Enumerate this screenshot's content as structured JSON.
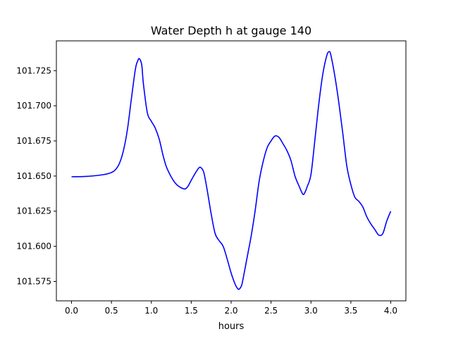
{
  "chart_data": {
    "type": "line",
    "title": "Water Depth h at gauge 140",
    "xlabel": "hours",
    "ylabel": "",
    "xlim": [
      -0.19,
      4.19
    ],
    "ylim": [
      101.5612,
      101.7462
    ],
    "xticks": [
      {
        "value": 0.0,
        "label": "0.0"
      },
      {
        "value": 0.5,
        "label": "0.5"
      },
      {
        "value": 1.0,
        "label": "1.0"
      },
      {
        "value": 1.5,
        "label": "1.5"
      },
      {
        "value": 2.0,
        "label": "2.0"
      },
      {
        "value": 2.5,
        "label": "2.5"
      },
      {
        "value": 3.0,
        "label": "3.0"
      },
      {
        "value": 3.5,
        "label": "3.5"
      },
      {
        "value": 4.0,
        "label": "4.0"
      }
    ],
    "yticks": [
      {
        "value": 101.575,
        "label": "101.575"
      },
      {
        "value": 101.6,
        "label": "101.600"
      },
      {
        "value": 101.625,
        "label": "101.625"
      },
      {
        "value": 101.65,
        "label": "101.650"
      },
      {
        "value": 101.675,
        "label": "101.675"
      },
      {
        "value": 101.7,
        "label": "101.700"
      },
      {
        "value": 101.725,
        "label": "101.725"
      }
    ],
    "grid": false,
    "legend": "none",
    "series": [
      {
        "color": "#0000ff",
        "x": [
          0.0,
          0.2,
          0.4,
          0.5,
          0.55,
          0.6,
          0.65,
          0.7,
          0.75,
          0.8,
          0.83,
          0.85,
          0.88,
          0.9,
          0.95,
          1.0,
          1.05,
          1.1,
          1.15,
          1.2,
          1.3,
          1.4,
          1.45,
          1.5,
          1.55,
          1.6,
          1.63,
          1.66,
          1.7,
          1.75,
          1.8,
          1.85,
          1.9,
          1.95,
          2.0,
          2.05,
          2.08,
          2.1,
          2.13,
          2.15,
          2.2,
          2.25,
          2.3,
          2.35,
          2.4,
          2.45,
          2.5,
          2.55,
          2.6,
          2.65,
          2.7,
          2.75,
          2.8,
          2.85,
          2.9,
          2.93,
          2.95,
          3.0,
          3.05,
          3.1,
          3.15,
          3.2,
          3.23,
          3.25,
          3.3,
          3.35,
          3.4,
          3.45,
          3.5,
          3.55,
          3.6,
          3.65,
          3.7,
          3.75,
          3.8,
          3.85,
          3.9,
          3.95,
          4.0
        ],
        "y": [
          101.6495,
          101.6498,
          101.651,
          101.6525,
          101.6545,
          101.659,
          101.668,
          101.683,
          101.705,
          101.726,
          101.732,
          101.7335,
          101.729,
          101.716,
          101.695,
          101.689,
          101.684,
          101.676,
          101.664,
          101.655,
          101.645,
          101.641,
          101.642,
          101.647,
          101.652,
          101.656,
          101.6555,
          101.652,
          101.64,
          101.623,
          101.609,
          101.604,
          101.6,
          101.591,
          101.581,
          101.573,
          101.57,
          101.5695,
          101.572,
          101.577,
          101.592,
          101.607,
          101.625,
          101.646,
          101.66,
          101.67,
          101.675,
          101.6785,
          101.6775,
          101.673,
          101.668,
          101.661,
          101.65,
          101.643,
          101.637,
          101.639,
          101.642,
          101.651,
          101.676,
          101.702,
          101.723,
          101.736,
          101.7385,
          101.736,
          101.721,
          101.702,
          101.68,
          101.657,
          101.644,
          101.635,
          101.632,
          101.628,
          101.621,
          101.616,
          101.612,
          101.608,
          101.609,
          101.618,
          101.625
        ]
      }
    ]
  }
}
